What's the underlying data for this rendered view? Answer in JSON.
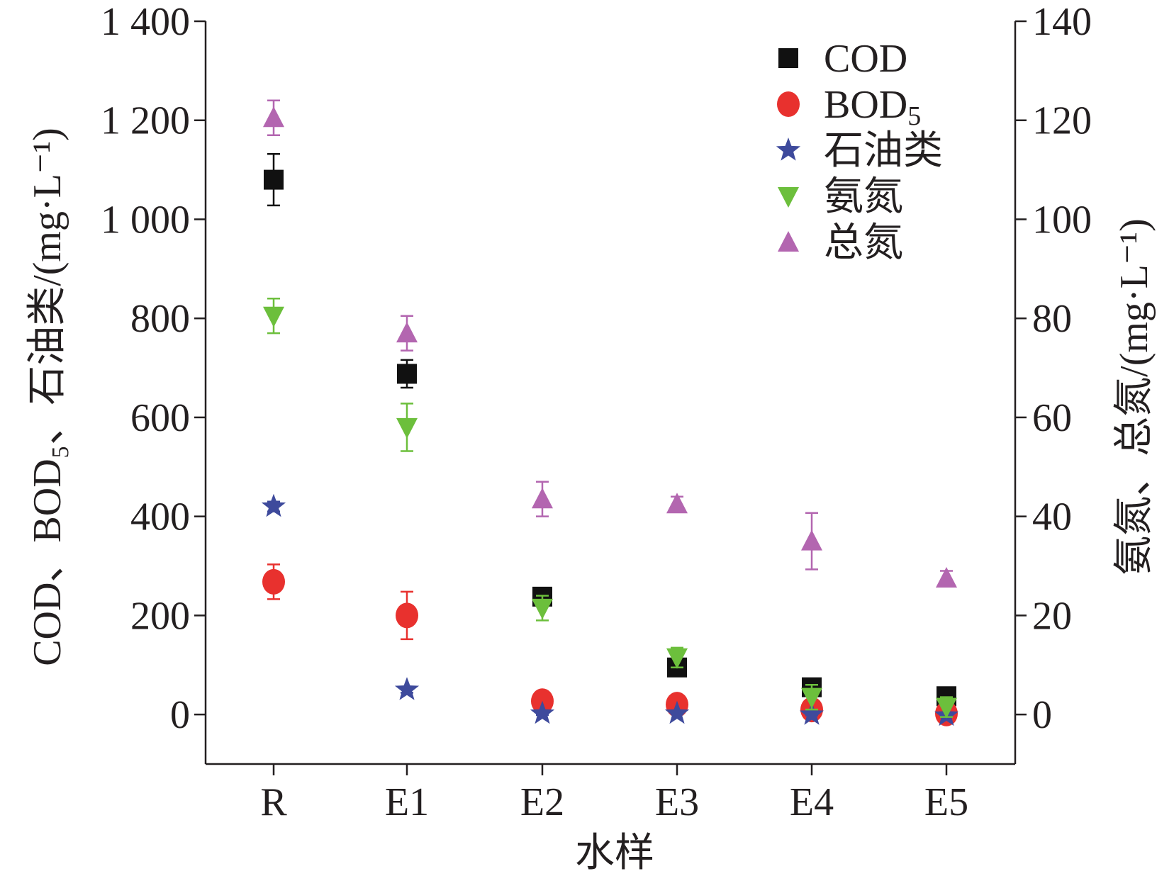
{
  "chart_data": {
    "type": "scatter",
    "xlabel": "水样",
    "ylabel_left": "COD、BOD₅、石油类/(mg·L⁻¹)",
    "ylabel_right": "氨氮、总氮/(mg·L⁻¹)",
    "categories": [
      "R",
      "E1",
      "E2",
      "E3",
      "E4",
      "E5"
    ],
    "y_left": {
      "min": -100,
      "max": 1400,
      "ticks": [
        0,
        200,
        400,
        600,
        800,
        1000,
        1200,
        1400
      ],
      "tick_labels": [
        "0",
        "200",
        "400",
        "600",
        "800",
        "1 000",
        "1 200",
        "1 400"
      ]
    },
    "y_right": {
      "min": -10,
      "max": 140,
      "ticks": [
        0,
        20,
        40,
        60,
        80,
        100,
        120,
        140
      ],
      "tick_labels": [
        "0",
        "20",
        "40",
        "60",
        "80",
        "100",
        "120",
        "140"
      ]
    },
    "legend_position": "top-right",
    "series": [
      {
        "name": "COD",
        "axis": "left",
        "marker": "square",
        "color": "#111111",
        "values": [
          1080,
          688,
          238,
          95,
          55,
          37
        ],
        "errors": [
          52,
          28,
          12,
          10,
          8,
          6
        ]
      },
      {
        "name": "BOD5",
        "axis": "left",
        "marker": "circle",
        "color": "#e8312e",
        "values": [
          268,
          200,
          27,
          20,
          10,
          2
        ],
        "errors": [
          35,
          48,
          5,
          5,
          4,
          3
        ]
      },
      {
        "name": "石油类",
        "axis": "left",
        "marker": "star",
        "color": "#3e4a9c",
        "values": [
          420,
          50,
          2,
          2,
          0,
          -2
        ],
        "errors": [
          10,
          6,
          3,
          2,
          2,
          2
        ]
      },
      {
        "name": "氨氮",
        "axis": "right",
        "marker": "triangle-down",
        "color": "#6cbf3c",
        "values": [
          80.5,
          58,
          21.5,
          11.5,
          3.5,
          1.5
        ],
        "errors": [
          3.5,
          4.8,
          2.5,
          2,
          2.5,
          2
        ]
      },
      {
        "name": "总氮",
        "axis": "right",
        "marker": "triangle-up",
        "color": "#b366b0",
        "values": [
          120.5,
          77,
          43.5,
          42.5,
          35,
          27.5
        ],
        "errors": [
          3.5,
          3.5,
          3.5,
          1.5,
          5.7,
          1.5
        ]
      }
    ]
  }
}
